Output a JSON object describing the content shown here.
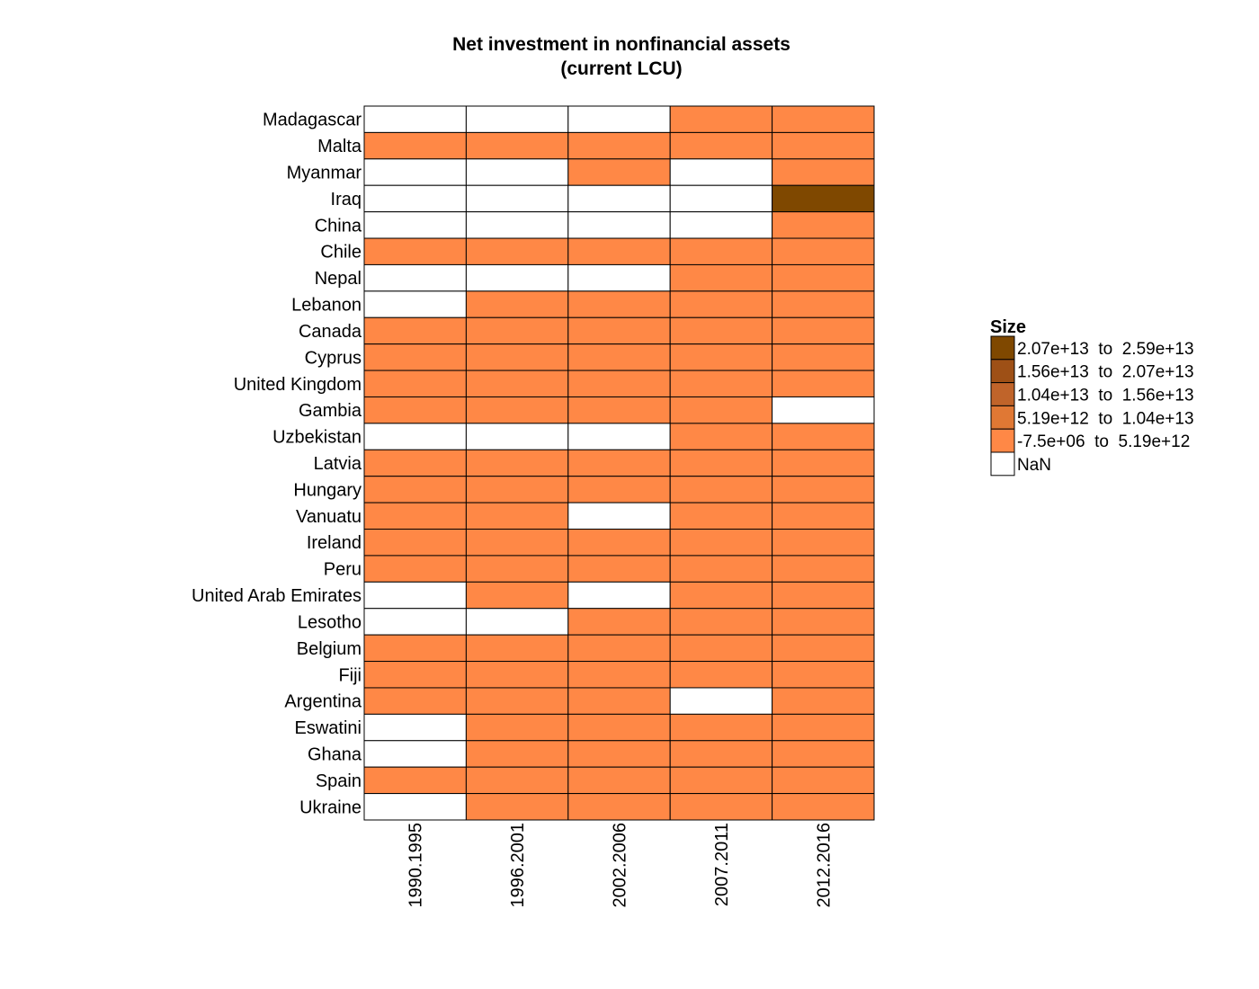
{
  "chart_data": {
    "type": "heatmap",
    "title": [
      "Net investment in nonfinancial assets",
      "(current LCU)"
    ],
    "x_categories": [
      "1990.1995",
      "1996.2001",
      "2002.2006",
      "2007.2011",
      "2012.2016"
    ],
    "y_categories": [
      "Madagascar",
      "Malta",
      "Myanmar",
      "Iraq",
      "China",
      "Chile",
      "Nepal",
      "Lebanon",
      "Canada",
      "Cyprus",
      "United Kingdom",
      "Gambia",
      "Uzbekistan",
      "Latvia",
      "Hungary",
      "Vanuatu",
      "Ireland",
      "Peru",
      "United Arab Emirates",
      "Lesotho",
      "Belgium",
      "Fiji",
      "Argentina",
      "Eswatini",
      "Ghana",
      "Spain",
      "Ukraine"
    ],
    "cell_bins": [
      [
        -1,
        -1,
        -1,
        0,
        0
      ],
      [
        0,
        0,
        0,
        0,
        0
      ],
      [
        -1,
        -1,
        0,
        -1,
        0
      ],
      [
        -1,
        -1,
        -1,
        -1,
        4
      ],
      [
        -1,
        -1,
        -1,
        -1,
        0
      ],
      [
        0,
        0,
        0,
        0,
        0
      ],
      [
        -1,
        -1,
        -1,
        0,
        0
      ],
      [
        -1,
        0,
        0,
        0,
        0
      ],
      [
        0,
        0,
        0,
        0,
        0
      ],
      [
        0,
        0,
        0,
        0,
        0
      ],
      [
        0,
        0,
        0,
        0,
        0
      ],
      [
        0,
        0,
        0,
        0,
        -1
      ],
      [
        -1,
        -1,
        -1,
        0,
        0
      ],
      [
        0,
        0,
        0,
        0,
        0
      ],
      [
        0,
        0,
        0,
        0,
        0
      ],
      [
        0,
        0,
        -1,
        0,
        0
      ],
      [
        0,
        0,
        0,
        0,
        0
      ],
      [
        0,
        0,
        0,
        0,
        0
      ],
      [
        -1,
        0,
        -1,
        0,
        0
      ],
      [
        -1,
        -1,
        0,
        0,
        0
      ],
      [
        0,
        0,
        0,
        0,
        0
      ],
      [
        0,
        0,
        0,
        0,
        0
      ],
      [
        0,
        0,
        0,
        -1,
        0
      ],
      [
        -1,
        0,
        0,
        0,
        0
      ],
      [
        -1,
        0,
        0,
        0,
        0
      ],
      [
        0,
        0,
        0,
        0,
        0
      ],
      [
        -1,
        0,
        0,
        0,
        0
      ]
    ],
    "bins": [
      {
        "label": "-7.5e+06  to  5.19e+12",
        "color": "#ff8846"
      },
      {
        "label": "5.19e+12  to  1.04e+13",
        "color": "#e07834"
      },
      {
        "label": "1.04e+13  to  1.56e+13",
        "color": "#c0642a"
      },
      {
        "label": "1.56e+13  to  2.07e+13",
        "color": "#9e5016"
      },
      {
        "label": "2.07e+13  to  2.59e+13",
        "color": "#7f4800"
      }
    ],
    "nan_bin": {
      "label": "NaN",
      "color": "#ffffff"
    },
    "legend": {
      "title": "Size",
      "position": "right"
    }
  }
}
